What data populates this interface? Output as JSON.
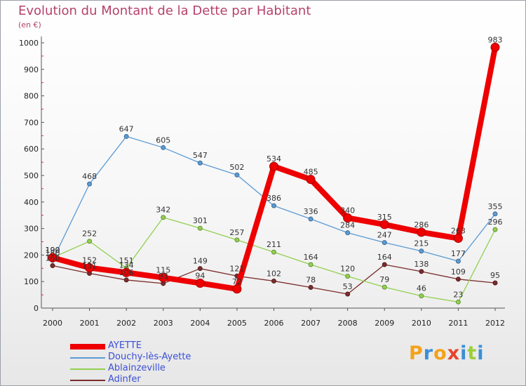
{
  "title": "Evolution du Montant de la Dette par Habitant",
  "unit_label": "(en €)",
  "logo": {
    "letters": [
      "P",
      "r",
      "o",
      "x",
      "i",
      "t",
      "i"
    ],
    "colors": [
      "#f4a21b",
      "#3a8fd6",
      "#f4a21b",
      "#e7432d",
      "#3a8fd6",
      "#9ccf3a",
      "#3a8fd6"
    ]
  },
  "chart_data": {
    "type": "line",
    "title": "Evolution du Montant de la Dette par Habitant",
    "ylabel": "(en €)",
    "xlabel": "",
    "x": [
      "2000",
      "2001",
      "2002",
      "2003",
      "2004",
      "2005",
      "2006",
      "2007",
      "2008",
      "2009",
      "2010",
      "2011",
      "2012"
    ],
    "ylim": [
      0,
      1000
    ],
    "yticks": [
      0,
      100,
      200,
      300,
      400,
      500,
      600,
      700,
      800,
      900,
      1000
    ],
    "grid": false,
    "legend_position": "bottom-left",
    "series": [
      {
        "name": "AYETTE",
        "color": "#ee0000",
        "width": 8,
        "marker_r": 6,
        "values": [
          190,
          152,
          134,
          115,
          94,
          72,
          534,
          485,
          340,
          315,
          286,
          263,
          983
        ]
      },
      {
        "name": "Douchy-lès-Ayette",
        "color": "#5b9bd5",
        "width": 1.3,
        "marker_r": 3,
        "values": [
          180,
          468,
          647,
          605,
          547,
          502,
          386,
          336,
          284,
          247,
          215,
          177,
          355
        ]
      },
      {
        "name": "Ablainzeville",
        "color": "#92d050",
        "width": 1.3,
        "marker_r": 3,
        "values": [
          190,
          252,
          151,
          342,
          301,
          257,
          211,
          164,
          120,
          79,
          46,
          23,
          296
        ]
      },
      {
        "name": "Adinfer",
        "color": "#7b2c2c",
        "width": 1.3,
        "marker_r": 3,
        "values": [
          160,
          131,
          106,
          93,
          149,
          121,
          102,
          78,
          53,
          164,
          138,
          109,
          95
        ]
      }
    ]
  }
}
